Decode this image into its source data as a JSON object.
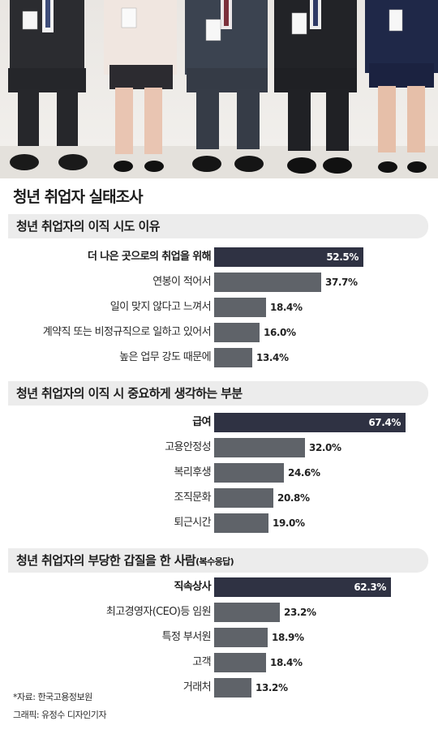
{
  "title": "청년 취업자 실태조사",
  "source": "*자료: 한국고용정보원",
  "credit": "그래픽: 유정수 디자인기자",
  "chart_data": [
    {
      "type": "bar",
      "orientation": "horizontal",
      "title": "청년 취업자의 이직 시도 이유",
      "title_note": "",
      "unit": "%",
      "categories": [
        "더 나은 곳으로의 취업을 위해",
        "연봉이 적어서",
        "일이 맞지 않다고 느껴서",
        "계약직 또는 비정규직으로 일하고 있어서",
        "높은 업무 강도 때문에"
      ],
      "values": [
        52.5,
        37.7,
        18.4,
        16.0,
        13.4
      ],
      "value_labels": [
        "52.5%",
        "37.7%",
        "18.4%",
        "16.0%",
        "13.4%"
      ]
    },
    {
      "type": "bar",
      "orientation": "horizontal",
      "title": "청년 취업자의 이직 시 중요하게 생각하는 부분",
      "title_note": "",
      "unit": "%",
      "categories": [
        "급여",
        "고용안정성",
        "복리후생",
        "조직문화",
        "퇴근시간"
      ],
      "values": [
        67.4,
        32.0,
        24.6,
        20.8,
        19.0
      ],
      "value_labels": [
        "67.4%",
        "32.0%",
        "24.6%",
        "20.8%",
        "19.0%"
      ]
    },
    {
      "type": "bar",
      "orientation": "horizontal",
      "title": "청년 취업자의 부당한 갑질을 한 사람",
      "title_note": "(복수응답)",
      "unit": "%",
      "categories": [
        "직속상사",
        "최고경영자(CEO)등 임원",
        "특정 부서원",
        "고객",
        "거래처"
      ],
      "values": [
        62.3,
        23.2,
        18.9,
        18.4,
        13.2
      ],
      "value_labels": [
        "62.3%",
        "23.2%",
        "18.9%",
        "18.4%",
        "13.2%"
      ]
    }
  ]
}
